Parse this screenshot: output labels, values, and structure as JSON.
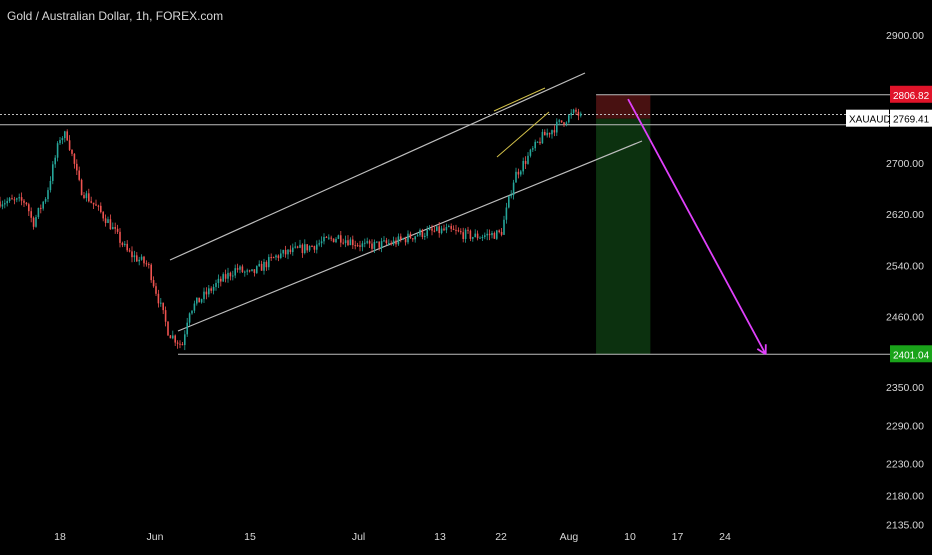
{
  "header": {
    "title": "Gold / Australian Dollar, 1h, FOREX.com"
  },
  "colors": {
    "background": "#000000",
    "candle_up": "#26a69a",
    "candle_down": "#ef5350",
    "wick": "#b0b0b0",
    "channel": "#bdbdbd",
    "wedge": "#d4c24a",
    "stop_zone": "#5a1515",
    "target_zone": "#0e3a12",
    "projection_arrow": "#e040fb",
    "label_red": "#e0142a",
    "label_green": "#1aa31a"
  },
  "chart_data": {
    "type": "candlestick",
    "symbol": "XAUAUD",
    "interval": "1h",
    "ylim": [
      2095,
      2955
    ],
    "yticks": [
      2900,
      2700,
      2620,
      2540,
      2460,
      2350,
      2290,
      2230,
      2180,
      2135
    ],
    "xticks": [
      "18",
      "Jun",
      "15",
      "Jul",
      "13",
      "22",
      "Aug",
      "10",
      "17",
      "24"
    ],
    "price_path": [
      {
        "date": "2024-05-13",
        "close": 2640
      },
      {
        "date": "2024-05-14",
        "close": 2605
      },
      {
        "date": "2024-05-16",
        "close": 2650
      },
      {
        "date": "2024-05-18",
        "close": 2740
      },
      {
        "date": "2024-05-19",
        "close": 2745
      },
      {
        "date": "2024-05-21",
        "close": 2660
      },
      {
        "date": "2024-05-25",
        "close": 2610
      },
      {
        "date": "2024-05-28",
        "close": 2560
      },
      {
        "date": "2024-05-31",
        "close": 2540
      },
      {
        "date": "2024-06-03",
        "close": 2435
      },
      {
        "date": "2024-06-05",
        "close": 2415
      },
      {
        "date": "2024-06-06",
        "close": 2470
      },
      {
        "date": "2024-06-10",
        "close": 2510
      },
      {
        "date": "2024-06-13",
        "close": 2535
      },
      {
        "date": "2024-06-15",
        "close": 2525
      },
      {
        "date": "2024-06-19",
        "close": 2555
      },
      {
        "date": "2024-06-24",
        "close": 2570
      },
      {
        "date": "2024-06-28",
        "close": 2585
      },
      {
        "date": "2024-07-02",
        "close": 2570
      },
      {
        "date": "2024-07-06",
        "close": 2575
      },
      {
        "date": "2024-07-10",
        "close": 2590
      },
      {
        "date": "2024-07-14",
        "close": 2595
      },
      {
        "date": "2024-07-18",
        "close": 2585
      },
      {
        "date": "2024-07-22",
        "close": 2590
      },
      {
        "date": "2024-07-24",
        "close": 2680
      },
      {
        "date": "2024-07-26",
        "close": 2710
      },
      {
        "date": "2024-07-28",
        "close": 2740
      },
      {
        "date": "2024-07-31",
        "close": 2765
      },
      {
        "date": "2024-08-02",
        "close": 2780
      },
      {
        "date": "2024-08-03",
        "close": 2769
      }
    ],
    "horizontal_levels": [
      {
        "value": 2769.41,
        "label": "XAUAUD 2769.41"
      },
      {
        "value": 2806.82,
        "label": "2806.82"
      },
      {
        "value": 2401.04,
        "label": "2401.04"
      }
    ],
    "trade_box": {
      "date_start": "2024-08-05",
      "date_end": "2024-08-13",
      "entry": 2769.41,
      "stop": 2806.82,
      "target": 2401.04
    },
    "projection": {
      "from": {
        "date": "2024-08-05",
        "value": 2800
      },
      "to": {
        "date": "2024-08-30",
        "value": 2401.04
      }
    }
  }
}
